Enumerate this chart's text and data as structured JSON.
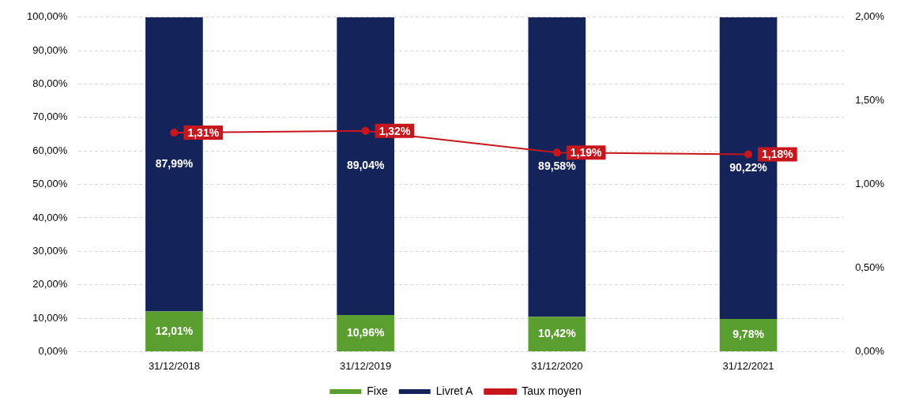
{
  "chart_data": {
    "type": "bar",
    "stacked": true,
    "grid": "y",
    "legend": "bottom",
    "categories": [
      "31/12/2018",
      "31/12/2019",
      "31/12/2020",
      "31/12/2021"
    ],
    "series": [
      {
        "name": "Fixe",
        "color": "#5a9e2f",
        "values": [
          12.01,
          10.96,
          10.42,
          9.78
        ],
        "value_labels": [
          "12,01%",
          "10,96%",
          "10,42%",
          "9,78%"
        ]
      },
      {
        "name": "Livret A",
        "color": "#14245a",
        "values": [
          87.99,
          89.04,
          89.58,
          90.22
        ],
        "value_labels": [
          "87,99%",
          "89,04%",
          "89,58%",
          "90,22%"
        ]
      },
      {
        "name": "Taux moyen",
        "type": "line",
        "axis": "y2",
        "color": "#c8161d",
        "marker": "circle",
        "values": [
          1.31,
          1.32,
          1.19,
          1.18
        ],
        "value_labels": [
          "1,31%",
          "1,32%",
          "1,19%",
          "1,18%"
        ]
      }
    ],
    "ylim": [
      0,
      100
    ],
    "yticks": [
      {
        "value": 0,
        "label": "0,00%"
      },
      {
        "value": 10,
        "label": "10,00%"
      },
      {
        "value": 20,
        "label": "20,00%"
      },
      {
        "value": 30,
        "label": "30,00%"
      },
      {
        "value": 40,
        "label": "40,00%"
      },
      {
        "value": 50,
        "label": "50,00%"
      },
      {
        "value": 60,
        "label": "60,00%"
      },
      {
        "value": 70,
        "label": "70,00%"
      },
      {
        "value": 80,
        "label": "80,00%"
      },
      {
        "value": 90,
        "label": "90,00%"
      },
      {
        "value": 100,
        "label": "100,00%"
      }
    ],
    "y2lim": [
      0,
      2
    ],
    "y2ticks": [
      {
        "value": 0,
        "label": "0,00%"
      },
      {
        "value": 0.5,
        "label": "0,50%"
      },
      {
        "value": 1,
        "label": "1,00%"
      },
      {
        "value": 1.5,
        "label": "1,50%"
      },
      {
        "value": 2,
        "label": "2,00%"
      }
    ]
  }
}
